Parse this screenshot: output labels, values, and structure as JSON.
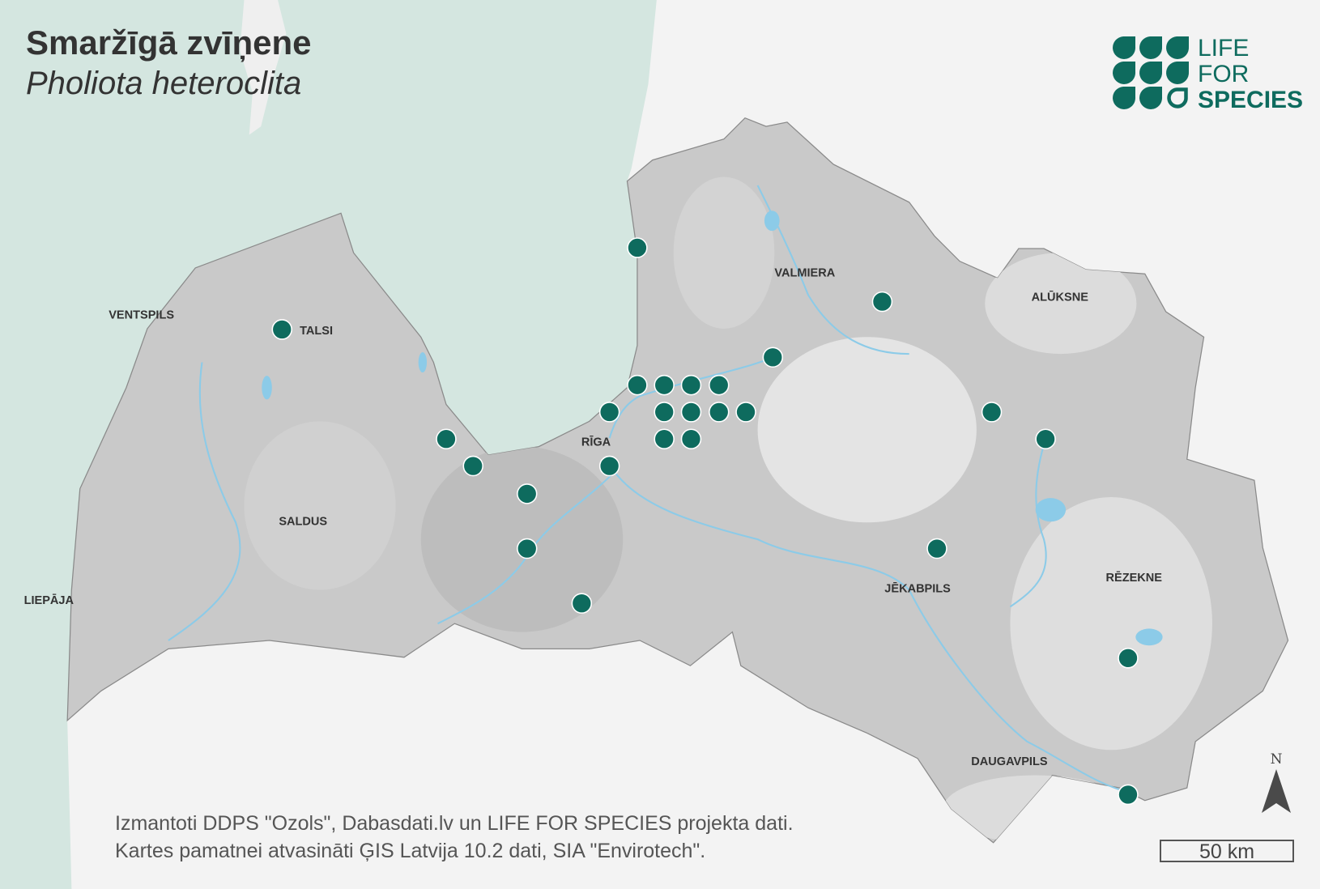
{
  "header": {
    "title": "Smaržīgā zvīņene",
    "subtitle": "Pholiota heteroclita"
  },
  "logo": {
    "line1": "LIFE",
    "line2": "FOR",
    "line3": "SPECIES",
    "color": "#0e6b5e"
  },
  "cities": {
    "ventspils": "VENTSPILS",
    "talsi": "TALSI",
    "valmiera": "VALMIERA",
    "aluksne": "ALŪKSNE",
    "riga": "RĪGA",
    "saldus": "SALDUS",
    "liepaja": "LIEPĀJA",
    "jekabpils": "JĒKABPILS",
    "rezekne": "RĒZEKNE",
    "daugavpils": "DAUGAVPILS"
  },
  "credits": {
    "line1": "Izmantoti DDPS \"Ozols\", Dabasdati.lv un LIFE FOR SPECIES projekta dati.",
    "line2": "Kartes pamatnei atvasināti ĢIS Latvija 10.2 dati, SIA \"Envirotech\"."
  },
  "scale_bar": "50 km",
  "north_label": "N",
  "colors": {
    "sea": "#d4e6e0",
    "land_outside": "#f3f3f3",
    "country": "#c9c9c9",
    "water": "#8ccbe8",
    "marker": "#0e6b5e"
  }
}
